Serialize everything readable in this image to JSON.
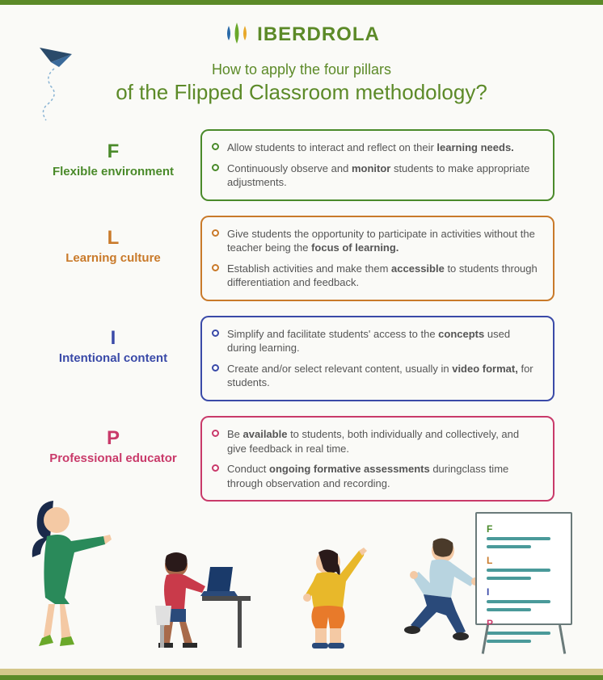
{
  "brand": {
    "name": "IBERDROLA"
  },
  "heading": {
    "line1": "How to apply the four pillars",
    "line2": "of the Flipped Classroom methodology?"
  },
  "colors": {
    "brand_green": "#5c8a28",
    "green": "#4a8a2a",
    "orange": "#c97a2a",
    "blue": "#3a4aa8",
    "pink": "#c93a6a",
    "board_teal": "#4a9a9a",
    "text": "#555555"
  },
  "pillars": [
    {
      "letter": "F",
      "label": "Flexible environment",
      "color": "#4a8a2a",
      "points": [
        {
          "pre": "Allow students to interact and reflect on their ",
          "bold": "learning needs.",
          "post": ""
        },
        {
          "pre": "Continuously observe and ",
          "bold": "monitor",
          "post": " students to make appropriate adjustments."
        }
      ]
    },
    {
      "letter": "L",
      "label": "Learning culture",
      "color": "#c97a2a",
      "points": [
        {
          "pre": "Give students the opportunity to participate in activities without the teacher being the ",
          "bold": "focus of learning.",
          "post": ""
        },
        {
          "pre": "Establish activities and make them ",
          "bold": "accessible",
          "post": " to students through differentiation and feedback."
        }
      ]
    },
    {
      "letter": "I",
      "label": "Intentional content",
      "color": "#3a4aa8",
      "points": [
        {
          "pre": "Simplify and facilitate students' access to the ",
          "bold": "concepts",
          "post": " used during learning."
        },
        {
          "pre": "Create and/or select relevant content, usually in ",
          "bold": "video format,",
          "post": " for students."
        }
      ]
    },
    {
      "letter": "P",
      "label": "Professional educator",
      "color": "#c93a6a",
      "points": [
        {
          "pre": "Be ",
          "bold": "available",
          "post": " to students, both individually and collectively, and give feedback in real time."
        },
        {
          "pre": "Conduct ",
          "bold": "ongoing formative assessments",
          "post": " duringclass time through observation and recording."
        }
      ]
    }
  ],
  "board_letters": [
    {
      "t": "F",
      "c": "#4a8a2a"
    },
    {
      "t": "L",
      "c": "#c97a2a"
    },
    {
      "t": "I",
      "c": "#3a4aa8"
    },
    {
      "t": "P",
      "c": "#c93a6a"
    }
  ]
}
